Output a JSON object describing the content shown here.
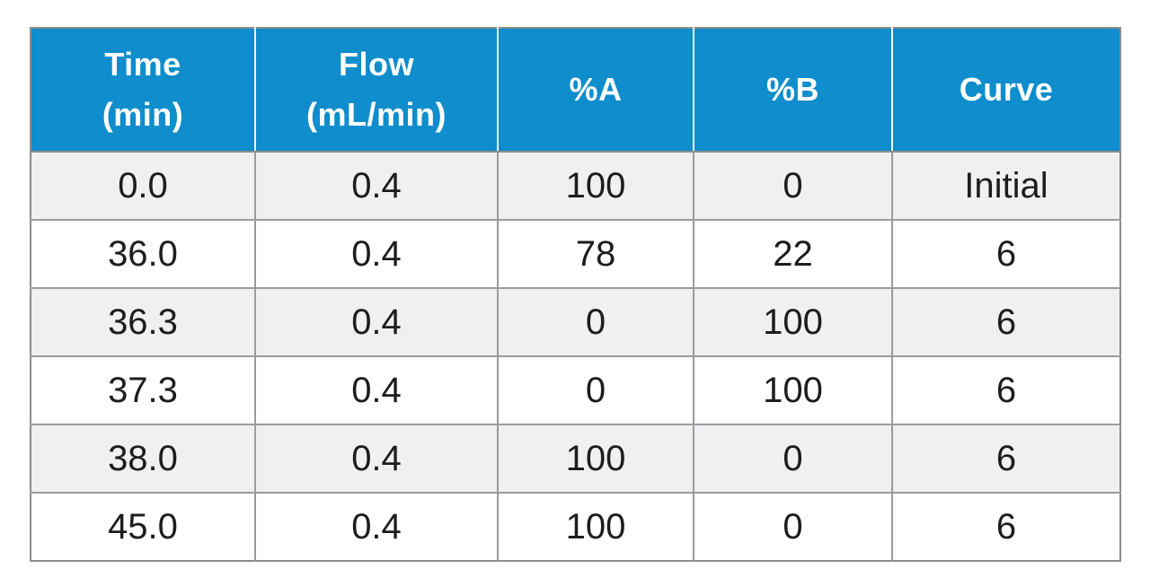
{
  "table": {
    "name": "gradient-conditions-table",
    "headers": [
      {
        "id": "time",
        "label": "Time\n(min)"
      },
      {
        "id": "flow",
        "label": "Flow\n(mL/min)"
      },
      {
        "id": "percent_a",
        "label": "%A"
      },
      {
        "id": "percent_b",
        "label": "%B"
      },
      {
        "id": "curve",
        "label": "Curve"
      }
    ],
    "rows": [
      [
        "0.0",
        "0.4",
        "100",
        "0",
        "Initial"
      ],
      [
        "36.0",
        "0.4",
        "78",
        "22",
        "6"
      ],
      [
        "36.3",
        "0.4",
        "0",
        "100",
        "6"
      ],
      [
        "37.3",
        "0.4",
        "0",
        "100",
        "6"
      ],
      [
        "38.0",
        "0.4",
        "100",
        "0",
        "6"
      ],
      [
        "45.0",
        "0.4",
        "100",
        "0",
        "6"
      ]
    ]
  },
  "colors": {
    "header_bg": "#0f8dcc",
    "header_text": "#ffffff",
    "row_alt_bg": "#f0f0f2",
    "row_bg": "#ffffff",
    "grid_border": "#9b9b9b",
    "outer_border": "#8c8c8c",
    "body_text": "#1d1d1f"
  }
}
